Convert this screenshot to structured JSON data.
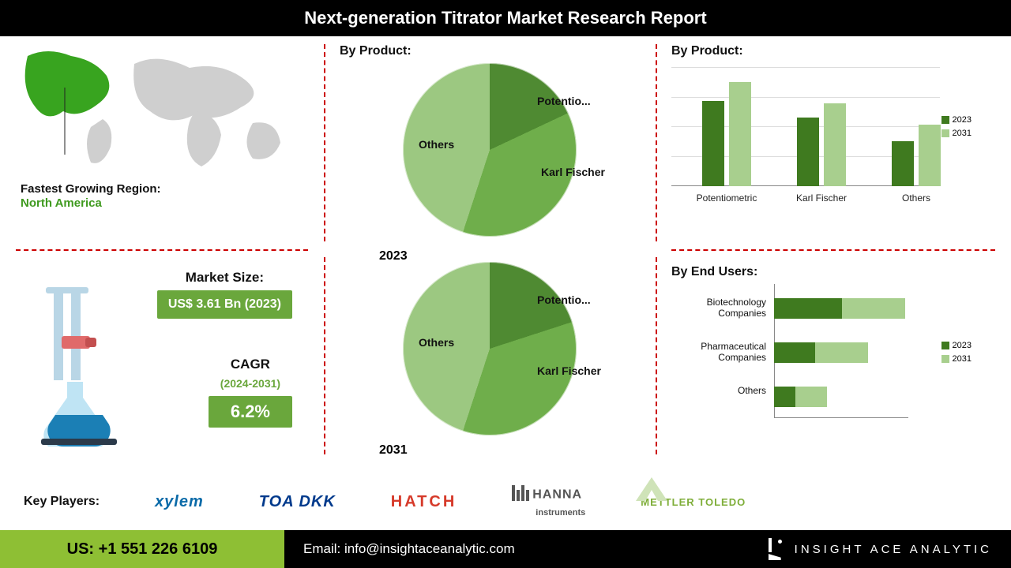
{
  "title": "Next-generation Titrator Market Research Report",
  "colors": {
    "accent": "#6aa73c",
    "accent_dark": "#3f7a1f",
    "pie1": "#4f8a32",
    "pie2": "#6fae4b",
    "pie3": "#9cc881",
    "bar2023": "#3f7a1f",
    "bar2031": "#a8cf8e",
    "divider": "#c00000",
    "footer_accent": "#8ebf34",
    "logo_xylem": "#0a6aa8",
    "logo_toa": "#003a8c",
    "logo_hatch": "#d63a2a",
    "logo_hanna": "#555555",
    "logo_mt": "#7fae3a"
  },
  "region": {
    "label": "Fastest Growing Region:",
    "value": "North America",
    "value_color": "#3f9a1f",
    "highlight_color": "#38a41f",
    "land_color": "#cfcfcf"
  },
  "metrics": {
    "market_size_label": "Market Size:",
    "market_size_value": "US$ 3.61 Bn (2023)",
    "cagr_label": "CAGR",
    "cagr_period": "(2024-2031)",
    "cagr_value": "6.2%"
  },
  "pie": {
    "section_label": "By Product:",
    "labels": {
      "a": "Potentio...",
      "b": "Karl Fischer",
      "c": "Others"
    },
    "y2023": {
      "year": "2023",
      "potentiometric": 18,
      "karl_fischer": 37,
      "others": 45
    },
    "y2031": {
      "year": "2031",
      "potentiometric": 20,
      "karl_fischer": 35,
      "others": 45
    }
  },
  "bar": {
    "section_label": "By Product:",
    "categories": [
      "Potentiometric",
      "Karl Fischer",
      "Others"
    ],
    "series": {
      "2023": [
        72,
        58,
        38
      ],
      "2031": [
        88,
        70,
        52
      ]
    },
    "ymax": 100,
    "gridlines": [
      25,
      50,
      75,
      100
    ],
    "legend": [
      "2023",
      "2031"
    ]
  },
  "hbar": {
    "section_label": "By End Users:",
    "categories": [
      "Biotechnology Companies",
      "Pharmaceutical Companies",
      "Others"
    ],
    "series": {
      "2023": [
        90,
        55,
        28
      ],
      "2031": [
        175,
        125,
        70
      ]
    },
    "xmax": 200,
    "legend": [
      "2023",
      "2031"
    ]
  },
  "key_players": {
    "label": "Key Players:",
    "items": [
      "xylem",
      "TOA DKK",
      "HATCH",
      "HANNA instruments",
      "METTLER TOLEDO"
    ]
  },
  "footer": {
    "phone": "US: +1 551 226 6109",
    "email": "Email: info@insightaceanalytic.com",
    "brand": "INSIGHT ACE ANALYTIC"
  }
}
